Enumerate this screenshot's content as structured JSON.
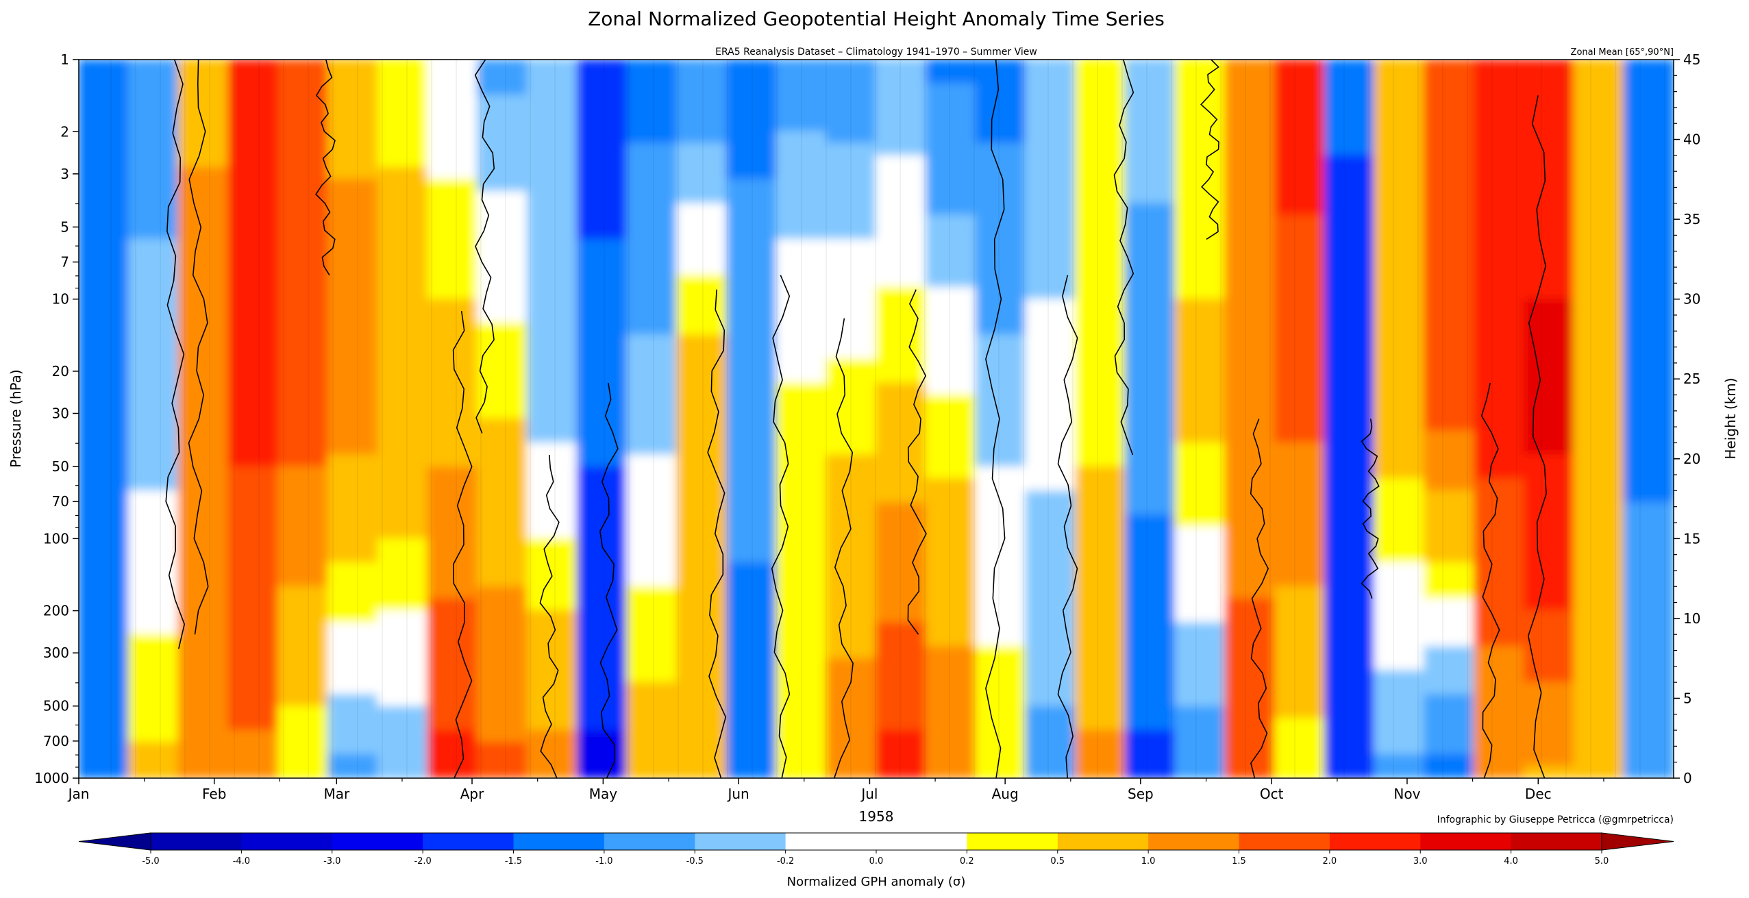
{
  "chart_data": {
    "type": "heatmap",
    "title": "Zonal Normalized Geopotential Height Anomaly Time Series",
    "subtitle": "ERA5 Reanalysis Dataset – Climatology 1941–1970 – Summer View",
    "region_label": "Zonal Mean [65°,90°N]",
    "credit": "Infographic by Giuseppe Petricca (@gmrpetricca)",
    "year": "1958",
    "ylabel": "Pressure (hPa)",
    "ylabel_right": "Height (km)",
    "months": [
      "Jan",
      "Feb",
      "Mar",
      "Apr",
      "May",
      "Jun",
      "Jul",
      "Aug",
      "Sep",
      "Oct",
      "Nov",
      "Dec"
    ],
    "pressure_levels": [
      1,
      2,
      3,
      5,
      7,
      10,
      20,
      30,
      50,
      70,
      100,
      200,
      300,
      500,
      700,
      1000
    ],
    "pressure_labels": [
      "1",
      "2",
      "3",
      "5",
      "7",
      "10",
      "20",
      "30",
      "50",
      "70",
      "100",
      "200",
      "300",
      "500",
      "700",
      "1000"
    ],
    "height_levels": [
      0,
      5,
      10,
      15,
      20,
      25,
      30,
      35,
      40,
      45
    ],
    "height_labels": [
      "0",
      "5",
      "10",
      "15",
      "20",
      "25",
      "30",
      "35",
      "40",
      "45"
    ],
    "ylim_hpa": [
      1000,
      1
    ],
    "ylim_km": [
      0,
      45
    ],
    "colorbar": {
      "label": "Normalized GPH anomaly (σ)",
      "boundaries": [
        -5.0,
        -4.0,
        -3.0,
        -2.0,
        -1.5,
        -1.0,
        -0.5,
        -0.2,
        0.0,
        0.2,
        0.5,
        1.0,
        1.5,
        2.0,
        3.0,
        4.0,
        5.0
      ],
      "tick_labels": [
        "-5.0",
        "-4.0",
        "-3.0",
        "-2.0",
        "-1.5",
        "-1.0",
        "-0.5",
        "-0.2",
        "0.0",
        "0.2",
        "0.5",
        "1.0",
        "1.5",
        "2.0",
        "3.0",
        "4.0",
        "5.0"
      ],
      "colors": [
        "#0000b4",
        "#0000d2",
        "#0000f0",
        "#0032ff",
        "#0078ff",
        "#3ca0ff",
        "#82c8ff",
        "#ffffff",
        "#ffffff",
        "#ffff00",
        "#ffc000",
        "#ff8c00",
        "#ff5000",
        "#ff1e00",
        "#e60000",
        "#c80000"
      ],
      "under_color": "#00008c",
      "over_color": "#a00000"
    },
    "columns": [
      {
        "period": "early Jan",
        "top": -1.2,
        "mid": -1.3,
        "bottom": -1.0
      },
      {
        "period": "mid Jan",
        "top": -0.6,
        "mid": -0.4,
        "bottom": 0.6
      },
      {
        "period": "late Jan",
        "top": 0.8,
        "mid": 1.5,
        "bottom": 1.0
      },
      {
        "period": "early Feb",
        "top": 2.5,
        "mid": 2.1,
        "bottom": 1.4
      },
      {
        "period": "mid Feb",
        "top": 1.6,
        "mid": 1.7,
        "bottom": 0.2
      },
      {
        "period": "late Feb",
        "top": 0.9,
        "mid": 1.2,
        "bottom": -0.6
      },
      {
        "period": "early Mar",
        "top": 0.3,
        "mid": 1.0,
        "bottom": -0.5
      },
      {
        "period": "mid Mar",
        "top": -0.1,
        "mid": 0.8,
        "bottom": 2.2
      },
      {
        "period": "late Mar",
        "top": -0.6,
        "mid": 0.5,
        "bottom": 1.6
      },
      {
        "period": "early Apr",
        "top": -0.4,
        "mid": -0.3,
        "bottom": 1.2
      },
      {
        "period": "mid Apr",
        "top": -1.6,
        "mid": -1.4,
        "bottom": -2.1
      },
      {
        "period": "late Apr",
        "top": -1.2,
        "mid": -0.3,
        "bottom": 0.8
      },
      {
        "period": "early May",
        "top": -0.9,
        "mid": 0.9,
        "bottom": 0.6
      },
      {
        "period": "mid May",
        "top": -1.1,
        "mid": -0.8,
        "bottom": -1.3
      },
      {
        "period": "late May",
        "top": -0.7,
        "mid": 0.3,
        "bottom": 0.4
      },
      {
        "period": "early Jun",
        "top": -0.8,
        "mid": 0.4,
        "bottom": 1.3
      },
      {
        "period": "mid Jun",
        "top": -0.5,
        "mid": 0.6,
        "bottom": 2.2
      },
      {
        "period": "late Jun",
        "top": -1.1,
        "mid": 0.3,
        "bottom": 1.4
      },
      {
        "period": "early Jul",
        "top": -1.2,
        "mid": -0.3,
        "bottom": 0.5
      },
      {
        "period": "mid Jul",
        "top": -0.4,
        "mid": -0.1,
        "bottom": -0.6
      },
      {
        "period": "late Jul",
        "top": 0.2,
        "mid": 0.4,
        "bottom": 1.1
      },
      {
        "period": "early Aug",
        "top": -0.3,
        "mid": -0.8,
        "bottom": -1.6
      },
      {
        "period": "mid Aug",
        "top": 0.3,
        "mid": 0.6,
        "bottom": -0.8
      },
      {
        "period": "late Aug",
        "top": 1.1,
        "mid": 1.4,
        "bottom": 1.6
      },
      {
        "period": "early Sep",
        "top": 2.3,
        "mid": 1.6,
        "bottom": 0.3
      },
      {
        "period": "mid Sep",
        "top": -1.4,
        "mid": -1.8,
        "bottom": -1.7
      },
      {
        "period": "late Sep",
        "top": 1.0,
        "mid": 0.7,
        "bottom": -0.6
      },
      {
        "period": "early Oct",
        "top": 1.8,
        "mid": 1.6,
        "bottom": -1.2
      },
      {
        "period": "mid Oct",
        "top": 2.4,
        "mid": 2.2,
        "bottom": 1.1
      },
      {
        "period": "late Oct",
        "top": 2.6,
        "mid": 3.2,
        "bottom": 0.9
      },
      {
        "period": "early Nov",
        "top": 1.0,
        "mid": 0.7,
        "bottom": 0.5
      },
      {
        "period": "late Nov",
        "top": -1.2,
        "mid": -1.1,
        "bottom": -0.7
      }
    ],
    "zero_contour": [
      {
        "x": 0.06,
        "ytop": 0.0,
        "ybot": 0.82
      },
      {
        "x": 0.075,
        "ytop": 0.0,
        "ybot": 0.8
      },
      {
        "x": 0.155,
        "ytop": 0.0,
        "ybot": 0.3
      },
      {
        "x": 0.24,
        "ytop": 0.35,
        "ybot": 1.0
      },
      {
        "x": 0.255,
        "ytop": 0.0,
        "ybot": 0.52
      },
      {
        "x": 0.295,
        "ytop": 0.55,
        "ybot": 1.0
      },
      {
        "x": 0.332,
        "ytop": 0.45,
        "ybot": 1.0
      },
      {
        "x": 0.4,
        "ytop": 0.32,
        "ybot": 1.0
      },
      {
        "x": 0.44,
        "ytop": 0.3,
        "ybot": 1.0
      },
      {
        "x": 0.48,
        "ytop": 0.36,
        "ybot": 1.0
      },
      {
        "x": 0.525,
        "ytop": 0.32,
        "ybot": 0.8
      },
      {
        "x": 0.575,
        "ytop": 0.0,
        "ybot": 1.0
      },
      {
        "x": 0.62,
        "ytop": 0.3,
        "ybot": 1.0
      },
      {
        "x": 0.655,
        "ytop": 0.0,
        "ybot": 0.55
      },
      {
        "x": 0.71,
        "ytop": 0.0,
        "ybot": 0.25
      },
      {
        "x": 0.74,
        "ytop": 0.5,
        "ybot": 1.0
      },
      {
        "x": 0.81,
        "ytop": 0.5,
        "ybot": 0.75
      },
      {
        "x": 0.885,
        "ytop": 0.45,
        "ybot": 1.0
      },
      {
        "x": 0.915,
        "ytop": 0.05,
        "ybot": 1.0
      }
    ]
  }
}
